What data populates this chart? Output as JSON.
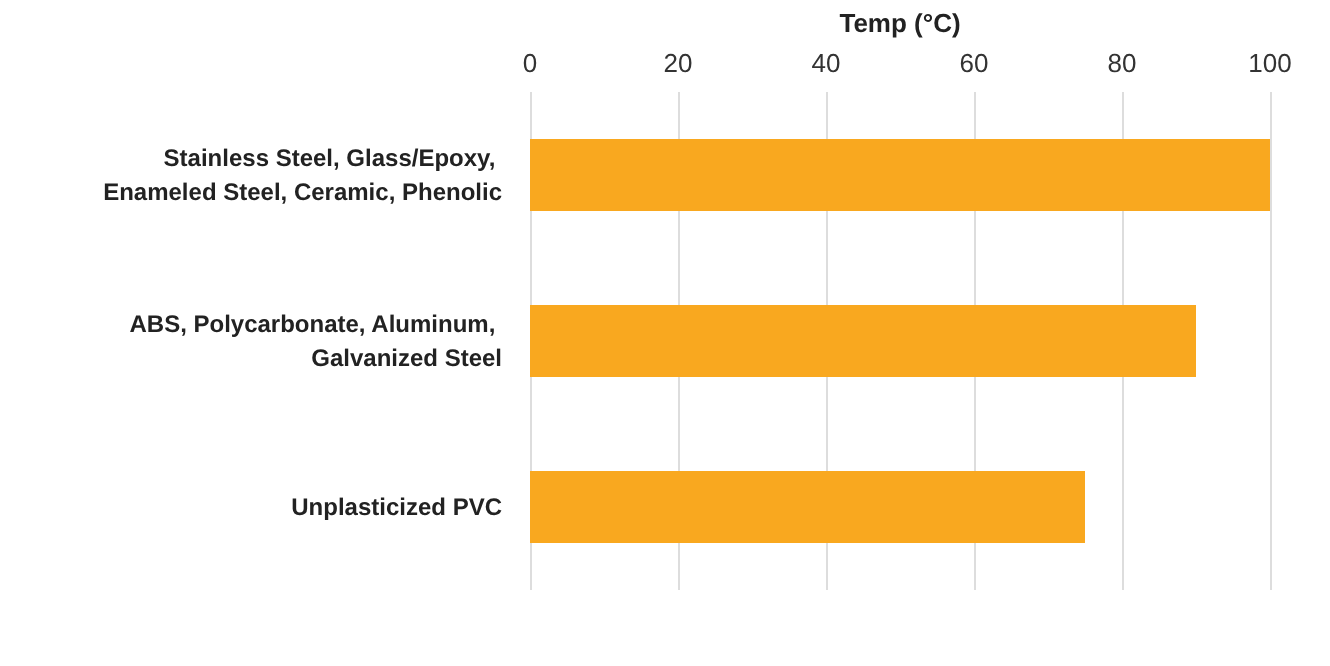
{
  "chart_data": {
    "type": "bar",
    "orientation": "horizontal",
    "xlabel": "Temp (°C)",
    "categories": [
      "Stainless Steel, Glass/Epoxy, Enameled Steel, Ceramic, Phenolic",
      "ABS, Polycarbonate, Aluminum, Galvanized Steel",
      "Unplasticized PVC"
    ],
    "values": [
      100,
      90,
      75
    ],
    "color": "#f9a81f",
    "xlim": [
      0,
      100
    ],
    "xticks": [
      0,
      20,
      40,
      60,
      80,
      100
    ],
    "grid": "x"
  }
}
